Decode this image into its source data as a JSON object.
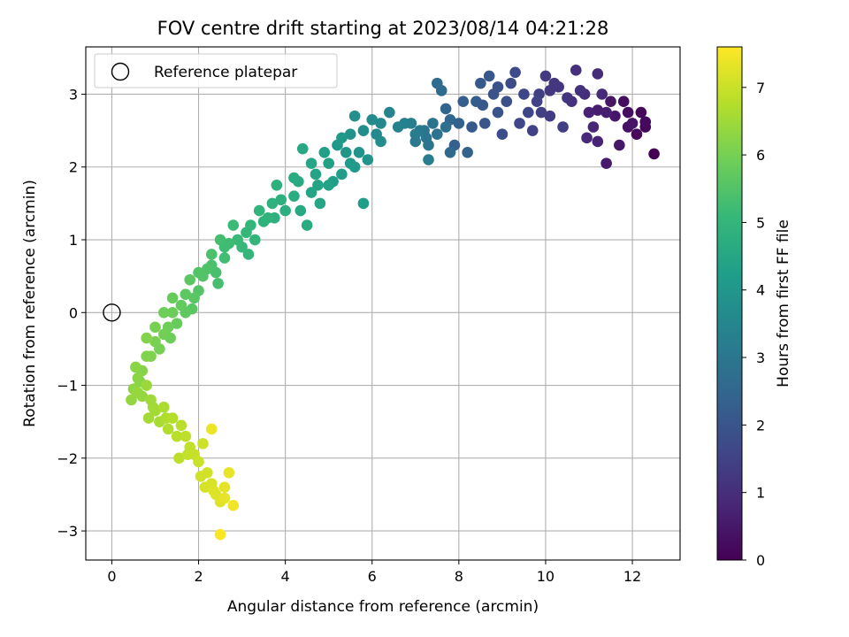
{
  "chart_data": {
    "type": "scatter",
    "title": "FOV centre drift starting at 2023/08/14 04:21:28",
    "xlabel": "Angular distance from reference (arcmin)",
    "ylabel": "Rotation from reference (arcmin)",
    "colorbar_label": "Hours from first FF file",
    "colormap": "viridis",
    "xlim": [
      -0.6,
      13.1
    ],
    "ylim": [
      -3.4,
      3.65
    ],
    "clim": [
      0,
      7.6
    ],
    "xticks": [
      0,
      2,
      4,
      6,
      8,
      10,
      12
    ],
    "yticks": [
      -3,
      -2,
      -1,
      0,
      1,
      2,
      3
    ],
    "cticks": [
      0,
      1,
      2,
      3,
      4,
      5,
      6,
      7
    ],
    "grid": true,
    "legend": {
      "placement": "top-left",
      "entries": [
        {
          "label": "Reference platepar",
          "marker": "open-circle"
        }
      ]
    },
    "reference_point": {
      "x": 0,
      "y": 0
    },
    "points": [
      [
        12.5,
        2.18,
        0.0
      ],
      [
        12.3,
        2.55,
        0.1
      ],
      [
        12.1,
        2.45,
        0.15
      ],
      [
        12.3,
        2.62,
        0.2
      ],
      [
        11.9,
        2.75,
        0.25
      ],
      [
        11.8,
        2.9,
        0.3
      ],
      [
        11.9,
        2.55,
        0.35
      ],
      [
        12.0,
        2.6,
        0.4
      ],
      [
        11.5,
        2.9,
        0.45
      ],
      [
        11.7,
        2.3,
        0.5
      ],
      [
        11.4,
        2.05,
        0.55
      ],
      [
        11.2,
        2.78,
        0.6
      ],
      [
        11.4,
        2.75,
        0.65
      ],
      [
        11.0,
        2.75,
        0.7
      ],
      [
        11.2,
        2.35,
        0.75
      ],
      [
        11.1,
        2.55,
        0.8
      ],
      [
        10.95,
        2.4,
        0.85
      ],
      [
        11.3,
        3.0,
        0.9
      ],
      [
        11.2,
        3.28,
        0.95
      ],
      [
        10.9,
        3.0,
        1.0
      ],
      [
        10.7,
        3.33,
        1.05
      ],
      [
        10.8,
        3.05,
        1.1
      ],
      [
        10.5,
        2.95,
        1.15
      ],
      [
        10.3,
        3.1,
        1.2
      ],
      [
        10.1,
        3.05,
        1.25
      ],
      [
        10.0,
        3.25,
        1.3
      ],
      [
        10.1,
        2.7,
        1.35
      ],
      [
        10.4,
        2.55,
        1.4
      ],
      [
        9.9,
        2.75,
        1.45
      ],
      [
        9.7,
        2.5,
        1.5
      ],
      [
        9.8,
        2.9,
        1.55
      ],
      [
        9.6,
        2.75,
        1.6
      ],
      [
        9.5,
        3.0,
        1.65
      ],
      [
        9.3,
        3.3,
        1.7
      ],
      [
        9.2,
        3.15,
        1.75
      ],
      [
        9.0,
        2.45,
        1.8
      ],
      [
        9.1,
        2.9,
        1.85
      ],
      [
        8.8,
        3.0,
        1.9
      ],
      [
        8.9,
        2.75,
        1.95
      ],
      [
        8.6,
        2.6,
        2.0
      ],
      [
        8.7,
        3.25,
        2.05
      ],
      [
        8.5,
        3.15,
        2.1
      ],
      [
        8.3,
        2.55,
        2.15
      ],
      [
        8.4,
        2.9,
        2.2
      ],
      [
        8.1,
        2.9,
        2.25
      ],
      [
        7.9,
        2.3,
        2.3
      ],
      [
        8.2,
        2.2,
        2.4
      ],
      [
        7.7,
        2.8,
        2.45
      ],
      [
        7.8,
        2.2,
        2.55
      ],
      [
        7.6,
        3.05,
        2.6
      ],
      [
        7.5,
        3.15,
        2.65
      ],
      [
        7.7,
        2.55,
        2.75
      ],
      [
        7.5,
        2.45,
        2.85
      ],
      [
        7.4,
        2.6,
        2.9
      ],
      [
        7.3,
        2.3,
        2.95
      ],
      [
        7.2,
        2.5,
        3.0
      ],
      [
        7.1,
        2.5,
        3.05
      ],
      [
        7.0,
        2.35,
        3.1
      ],
      [
        6.9,
        2.6,
        3.2
      ],
      [
        7.3,
        2.1,
        3.25
      ],
      [
        6.4,
        2.75,
        3.45
      ],
      [
        6.2,
        2.6,
        3.55
      ],
      [
        6.0,
        2.65,
        3.65
      ],
      [
        6.2,
        2.35,
        3.7
      ],
      [
        5.8,
        2.5,
        3.75
      ],
      [
        5.6,
        2.7,
        3.8
      ],
      [
        5.5,
        2.45,
        3.85
      ],
      [
        5.7,
        2.2,
        3.9
      ],
      [
        5.9,
        2.1,
        3.95
      ],
      [
        5.4,
        2.2,
        4.0
      ],
      [
        5.2,
        2.3,
        4.05
      ],
      [
        5.6,
        2.0,
        4.1
      ],
      [
        5.3,
        1.9,
        4.15
      ],
      [
        5.8,
        1.5,
        4.2
      ],
      [
        5.1,
        1.8,
        4.25
      ],
      [
        4.9,
        2.2,
        4.3
      ],
      [
        5.0,
        1.75,
        4.35
      ],
      [
        4.7,
        1.9,
        4.4
      ],
      [
        4.6,
        1.65,
        4.45
      ],
      [
        4.8,
        1.5,
        4.5
      ],
      [
        4.4,
        2.25,
        4.55
      ],
      [
        4.3,
        1.8,
        4.6
      ],
      [
        4.5,
        1.2,
        4.65
      ],
      [
        4.2,
        1.6,
        4.7
      ],
      [
        4.0,
        1.4,
        4.75
      ],
      [
        3.8,
        1.75,
        4.8
      ],
      [
        3.7,
        1.5,
        4.85
      ],
      [
        3.6,
        1.3,
        4.9
      ],
      [
        3.4,
        1.4,
        4.95
      ],
      [
        3.3,
        1.0,
        5.0
      ],
      [
        3.1,
        1.1,
        5.05
      ],
      [
        3.0,
        0.9,
        5.1
      ],
      [
        2.8,
        1.2,
        5.15
      ],
      [
        2.7,
        0.95,
        5.2
      ],
      [
        2.6,
        0.75,
        5.25
      ],
      [
        2.5,
        1.0,
        5.3
      ],
      [
        2.4,
        0.55,
        5.35
      ],
      [
        2.3,
        0.8,
        5.4
      ],
      [
        2.2,
        0.6,
        5.45
      ],
      [
        2.1,
        0.5,
        5.5
      ],
      [
        2.0,
        0.3,
        5.55
      ],
      [
        1.9,
        0.2,
        5.6
      ],
      [
        1.8,
        0.45,
        5.65
      ],
      [
        1.7,
        0.0,
        5.7
      ],
      [
        1.6,
        0.1,
        5.75
      ],
      [
        1.5,
        -0.15,
        5.8
      ],
      [
        1.4,
        0.0,
        5.85
      ],
      [
        1.3,
        -0.2,
        5.9
      ],
      [
        1.2,
        -0.3,
        5.95
      ],
      [
        1.1,
        -0.5,
        6.0
      ],
      [
        1.0,
        -0.4,
        6.05
      ],
      [
        0.9,
        -0.6,
        6.1
      ],
      [
        0.8,
        -0.35,
        6.15
      ],
      [
        0.7,
        -0.8,
        6.2
      ],
      [
        0.6,
        -0.9,
        6.25
      ],
      [
        0.5,
        -1.05,
        6.3
      ],
      [
        0.45,
        -1.2,
        6.35
      ],
      [
        0.6,
        -1.1,
        6.4
      ],
      [
        0.8,
        -1.0,
        6.45
      ],
      [
        0.9,
        -1.2,
        6.5
      ],
      [
        1.0,
        -1.35,
        6.55
      ],
      [
        1.1,
        -1.5,
        6.6
      ],
      [
        1.2,
        -1.3,
        6.65
      ],
      [
        1.3,
        -1.6,
        6.7
      ],
      [
        1.4,
        -1.45,
        6.75
      ],
      [
        1.6,
        -1.55,
        6.8
      ],
      [
        1.7,
        -1.7,
        6.85
      ],
      [
        1.8,
        -1.85,
        6.9
      ],
      [
        1.9,
        -1.95,
        6.95
      ],
      [
        2.0,
        -2.05,
        7.0
      ],
      [
        2.1,
        -1.8,
        7.05
      ],
      [
        2.2,
        -2.2,
        7.1
      ],
      [
        2.3,
        -2.35,
        7.15
      ],
      [
        2.4,
        -2.5,
        7.2
      ],
      [
        2.5,
        -2.6,
        7.25
      ],
      [
        2.6,
        -2.4,
        7.3
      ],
      [
        2.7,
        -2.2,
        7.35
      ],
      [
        2.3,
        -1.6,
        7.4
      ],
      [
        2.8,
        -2.65,
        7.45
      ],
      [
        2.5,
        -3.05,
        7.55
      ],
      [
        12.2,
        2.75,
        0.12
      ],
      [
        11.6,
        2.7,
        0.48
      ],
      [
        10.6,
        2.9,
        1.08
      ],
      [
        9.4,
        2.6,
        1.62
      ],
      [
        8.9,
        3.1,
        1.88
      ],
      [
        8.0,
        2.6,
        2.35
      ],
      [
        7.0,
        2.45,
        3.15
      ],
      [
        6.6,
        2.55,
        3.4
      ],
      [
        6.1,
        2.45,
        3.6
      ],
      [
        5.5,
        2.05,
        4.12
      ],
      [
        5.0,
        2.05,
        4.32
      ],
      [
        4.6,
        2.05,
        4.48
      ],
      [
        4.2,
        1.85,
        4.62
      ],
      [
        3.9,
        1.55,
        4.78
      ],
      [
        3.5,
        1.25,
        4.92
      ],
      [
        3.2,
        1.2,
        5.02
      ],
      [
        2.9,
        1.0,
        5.12
      ],
      [
        2.6,
        0.9,
        5.22
      ],
      [
        2.3,
        0.65,
        5.38
      ],
      [
        2.0,
        0.55,
        5.52
      ],
      [
        1.7,
        0.25,
        5.66
      ],
      [
        1.4,
        0.2,
        5.8
      ],
      [
        1.2,
        0.0,
        5.9
      ],
      [
        1.0,
        -0.2,
        6.02
      ],
      [
        0.8,
        -0.6,
        6.14
      ],
      [
        0.65,
        -0.95,
        6.22
      ],
      [
        0.7,
        -1.15,
        6.38
      ],
      [
        0.95,
        -1.3,
        6.52
      ],
      [
        1.25,
        -1.45,
        6.68
      ],
      [
        1.5,
        -1.7,
        6.8
      ],
      [
        1.75,
        -1.95,
        6.92
      ],
      [
        2.05,
        -2.25,
        7.08
      ],
      [
        2.35,
        -2.45,
        7.22
      ],
      [
        2.6,
        -2.55,
        7.32
      ],
      [
        10.2,
        3.15,
        1.22
      ],
      [
        9.85,
        3.0,
        1.4
      ],
      [
        8.55,
        2.85,
        2.08
      ],
      [
        7.8,
        2.65,
        2.48
      ],
      [
        7.25,
        2.4,
        2.98
      ],
      [
        6.75,
        2.6,
        3.3
      ],
      [
        5.3,
        2.4,
        4.08
      ],
      [
        4.75,
        1.75,
        4.42
      ],
      [
        4.35,
        1.4,
        4.58
      ],
      [
        3.75,
        1.3,
        4.82
      ],
      [
        3.15,
        0.8,
        5.04
      ],
      [
        2.45,
        0.4,
        5.34
      ],
      [
        1.85,
        0.05,
        5.62
      ],
      [
        1.35,
        -0.35,
        5.88
      ],
      [
        0.55,
        -0.75,
        6.26
      ],
      [
        0.85,
        -1.45,
        6.54
      ],
      [
        1.55,
        -2.0,
        6.86
      ],
      [
        2.15,
        -2.4,
        7.12
      ]
    ]
  }
}
